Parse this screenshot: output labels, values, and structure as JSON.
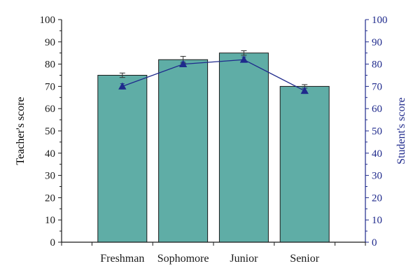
{
  "chart_data": {
    "type": "bar",
    "categories": [
      "Freshman",
      "Sophomore",
      "Junior",
      "Senior"
    ],
    "series": [
      {
        "type": "bar",
        "axis": "left",
        "values": [
          75,
          82,
          85,
          70
        ],
        "errors": [
          1.0,
          1.5,
          1.0,
          0.8
        ]
      },
      {
        "type": "line",
        "axis": "right",
        "values": [
          70,
          80,
          82,
          68
        ],
        "errors": [
          1.2,
          1.0,
          1.2,
          1.2
        ]
      }
    ],
    "ylabel_left": "Teacher's score",
    "ylabel_right": "Student's score",
    "ylim_left": [
      0,
      100
    ],
    "ylim_right": [
      0,
      100
    ],
    "yticks": [
      0,
      10,
      20,
      30,
      40,
      50,
      60,
      70,
      80,
      90,
      100
    ],
    "grid": false,
    "colors": {
      "bar_fill": "#5fada6",
      "bar_stroke": "#1a1a1a",
      "line": "#1f2a8c",
      "left_axis": "#1a1a1a",
      "right_axis": "#1f2a8c"
    }
  }
}
